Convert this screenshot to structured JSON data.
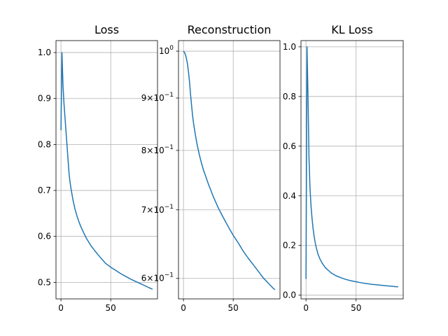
{
  "chart_data": [
    {
      "type": "line",
      "title": "Loss",
      "xlabel": "",
      "ylabel": "",
      "yscale": "linear",
      "grid": true,
      "xlim": [
        -5,
        97
      ],
      "ylim": [
        0.464,
        1.026
      ],
      "xticks": [
        0,
        50
      ],
      "xtick_labels": [
        "0",
        "50"
      ],
      "yticks": [
        0.5,
        0.6,
        0.7,
        0.8,
        0.9,
        1.0
      ],
      "ytick_labels": [
        "0.5",
        "0.6",
        "0.7",
        "0.8",
        "0.9",
        "1.0"
      ],
      "x": [
        0,
        1,
        2,
        3,
        4,
        5,
        6,
        7,
        8,
        9,
        10,
        12,
        14,
        16,
        18,
        20,
        25,
        30,
        35,
        40,
        45,
        50,
        55,
        60,
        65,
        70,
        75,
        80,
        85,
        90,
        92
      ],
      "y": [
        0.831,
        1.0,
        0.93,
        0.89,
        0.86,
        0.83,
        0.8,
        0.77,
        0.74,
        0.72,
        0.705,
        0.68,
        0.66,
        0.645,
        0.632,
        0.621,
        0.598,
        0.58,
        0.566,
        0.553,
        0.541,
        0.533,
        0.526,
        0.519,
        0.513,
        0.507,
        0.502,
        0.497,
        0.492,
        0.487,
        0.485
      ]
    },
    {
      "type": "line",
      "title": "Reconstruction",
      "xlabel": "",
      "ylabel": "",
      "yscale": "log",
      "grid": true,
      "xlim": [
        -5,
        97
      ],
      "ylim": [
        0.573,
        1.024
      ],
      "xticks": [
        0,
        50
      ],
      "xtick_labels": [
        "0",
        "50"
      ],
      "yticks": [
        0.6,
        0.7,
        0.8,
        0.9,
        1.0
      ],
      "ytick_labels": [
        {
          "base": "6×10",
          "exp": "−1"
        },
        {
          "base": "7×10",
          "exp": "−1"
        },
        {
          "base": "8×10",
          "exp": "−1"
        },
        {
          "base": "9×10",
          "exp": "−1"
        },
        {
          "base": "10",
          "exp": "0"
        }
      ],
      "x": [
        0,
        1,
        2,
        3,
        4,
        5,
        6,
        7,
        8,
        9,
        10,
        12,
        14,
        16,
        18,
        20,
        25,
        30,
        35,
        40,
        45,
        50,
        55,
        60,
        65,
        70,
        75,
        80,
        85,
        90,
        92
      ],
      "y": [
        1.0,
        0.997,
        0.992,
        0.983,
        0.972,
        0.955,
        0.935,
        0.91,
        0.888,
        0.868,
        0.852,
        0.828,
        0.808,
        0.792,
        0.778,
        0.766,
        0.742,
        0.721,
        0.703,
        0.688,
        0.674,
        0.661,
        0.65,
        0.638,
        0.628,
        0.619,
        0.61,
        0.601,
        0.594,
        0.587,
        0.585
      ]
    },
    {
      "type": "line",
      "title": "KL Loss",
      "xlabel": "",
      "ylabel": "",
      "yscale": "linear",
      "grid": true,
      "xlim": [
        -5,
        97
      ],
      "ylim": [
        -0.015,
        1.025
      ],
      "xticks": [
        0,
        50
      ],
      "xtick_labels": [
        "0",
        "50"
      ],
      "yticks": [
        0.0,
        0.2,
        0.4,
        0.6,
        0.8,
        1.0
      ],
      "ytick_labels": [
        "0.0",
        "0.2",
        "0.4",
        "0.6",
        "0.8",
        "1.0"
      ],
      "x": [
        0,
        1,
        2,
        3,
        4,
        5,
        6,
        7,
        8,
        9,
        10,
        12,
        14,
        16,
        18,
        20,
        25,
        30,
        35,
        40,
        45,
        50,
        55,
        60,
        65,
        70,
        75,
        80,
        85,
        90,
        92
      ],
      "y": [
        0.065,
        1.0,
        0.8,
        0.55,
        0.43,
        0.36,
        0.31,
        0.27,
        0.24,
        0.215,
        0.195,
        0.165,
        0.145,
        0.13,
        0.118,
        0.108,
        0.09,
        0.078,
        0.07,
        0.063,
        0.058,
        0.054,
        0.05,
        0.047,
        0.044,
        0.042,
        0.04,
        0.038,
        0.036,
        0.034,
        0.034
      ]
    }
  ]
}
